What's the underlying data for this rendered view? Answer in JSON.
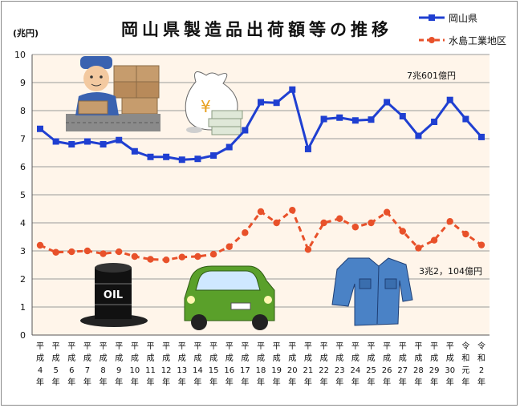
{
  "chart_data": {
    "type": "line",
    "title": "岡山県製造品出荷額等の推移",
    "unit_label": "(兆円)",
    "ylim": [
      0,
      10
    ],
    "yticks": [
      0,
      1,
      2,
      3,
      4,
      5,
      6,
      7,
      8,
      9,
      10
    ],
    "grid": true,
    "legend_position": "top-right",
    "categories": [
      "平成4年",
      "平成5年",
      "平成6年",
      "平成7年",
      "平成8年",
      "平成9年",
      "平成10年",
      "平成11年",
      "平成12年",
      "平成13年",
      "平成14年",
      "平成15年",
      "平成16年",
      "平成17年",
      "平成18年",
      "平成19年",
      "平成20年",
      "平成21年",
      "平成22年",
      "平成23年",
      "平成24年",
      "平成25年",
      "平成26年",
      "平成27年",
      "平成28年",
      "平成29年",
      "平成30年",
      "令和元年",
      "令和2年"
    ],
    "category_labels": [
      {
        "era": "平成",
        "num": "4"
      },
      {
        "era": "平成",
        "num": "5"
      },
      {
        "era": "平成",
        "num": "6"
      },
      {
        "era": "平成",
        "num": "7"
      },
      {
        "era": "平成",
        "num": "8"
      },
      {
        "era": "平成",
        "num": "9"
      },
      {
        "era": "平成",
        "num": "10"
      },
      {
        "era": "平成",
        "num": "11"
      },
      {
        "era": "平成",
        "num": "12"
      },
      {
        "era": "平成",
        "num": "13"
      },
      {
        "era": "平成",
        "num": "14"
      },
      {
        "era": "平成",
        "num": "15"
      },
      {
        "era": "平成",
        "num": "16"
      },
      {
        "era": "平成",
        "num": "17"
      },
      {
        "era": "平成",
        "num": "18"
      },
      {
        "era": "平成",
        "num": "19"
      },
      {
        "era": "平成",
        "num": "20"
      },
      {
        "era": "平成",
        "num": "21"
      },
      {
        "era": "平成",
        "num": "22"
      },
      {
        "era": "平成",
        "num": "23"
      },
      {
        "era": "平成",
        "num": "24"
      },
      {
        "era": "平成",
        "num": "25"
      },
      {
        "era": "平成",
        "num": "26"
      },
      {
        "era": "平成",
        "num": "27"
      },
      {
        "era": "平成",
        "num": "28"
      },
      {
        "era": "平成",
        "num": "29"
      },
      {
        "era": "平成",
        "num": "30"
      },
      {
        "era": "令和",
        "num": "元"
      },
      {
        "era": "令和",
        "num": "2"
      }
    ],
    "year_suffix": "年",
    "series": [
      {
        "name": "岡山県",
        "color": "#1f3fd1",
        "style": "solid",
        "marker": "square",
        "values": [
          7.35,
          6.9,
          6.8,
          6.9,
          6.8,
          6.95,
          6.55,
          6.35,
          6.35,
          6.25,
          6.28,
          6.4,
          6.7,
          7.3,
          8.3,
          8.28,
          8.75,
          6.63,
          7.7,
          7.75,
          7.65,
          7.68,
          8.3,
          7.8,
          7.1,
          7.6,
          8.38,
          7.7,
          7.06
        ]
      },
      {
        "name": "水島工業地区",
        "color": "#e8512a",
        "style": "dashed",
        "marker": "circle",
        "values": [
          3.2,
          2.95,
          2.97,
          3.0,
          2.9,
          2.97,
          2.8,
          2.7,
          2.68,
          2.78,
          2.8,
          2.88,
          3.15,
          3.65,
          4.4,
          4.0,
          4.45,
          3.05,
          4.0,
          4.15,
          3.85,
          4.0,
          4.38,
          3.7,
          3.1,
          3.38,
          4.05,
          3.6,
          3.21
        ]
      }
    ],
    "annotations": [
      {
        "text": "7兆601億円",
        "series": "岡山県"
      },
      {
        "text": "3兆2，104億円",
        "series": "水島工業地区"
      }
    ]
  },
  "illustrations": [
    "factory-worker-icon",
    "money-bag-icon",
    "oil-barrel-icon",
    "car-icon",
    "jacket-icon"
  ],
  "oil_label": "OIL"
}
